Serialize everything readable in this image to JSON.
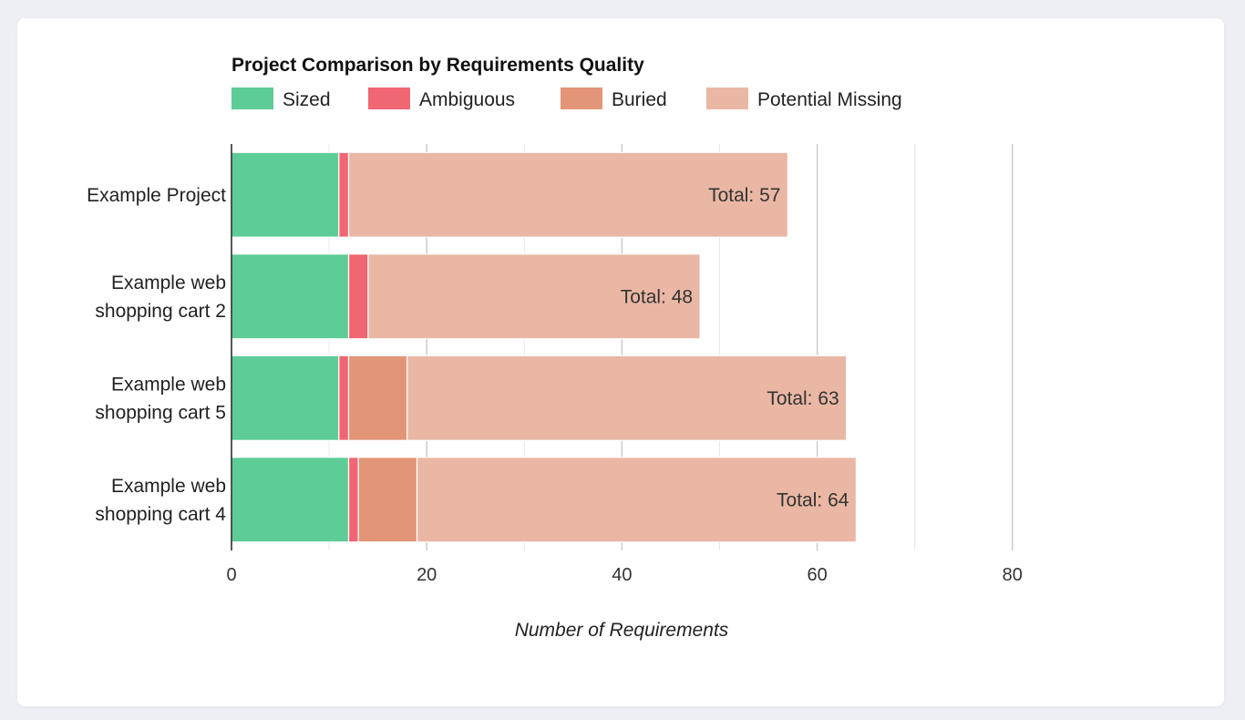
{
  "chart_data": {
    "type": "bar",
    "orientation": "horizontal",
    "stacked": true,
    "title": "Project Comparison by Requirements Quality",
    "xlabel": "Number of Requirements",
    "ylabel": "",
    "xlim": [
      0,
      80
    ],
    "x_ticks": [
      0,
      20,
      40,
      60,
      80
    ],
    "grid": true,
    "legend_position": "top-left",
    "categories": [
      [
        "Example Project"
      ],
      [
        "Example web",
        "shopping cart 2"
      ],
      [
        "Example web",
        "shopping cart 5"
      ],
      [
        "Example web",
        "shopping cart 4"
      ]
    ],
    "series": [
      {
        "name": "Sized",
        "color": "#5ecc96",
        "values": [
          11,
          12,
          11,
          12
        ]
      },
      {
        "name": "Ambiguous",
        "color": "#f06672",
        "values": [
          1,
          2,
          1,
          1
        ]
      },
      {
        "name": "Buried",
        "color": "#e29577",
        "values": [
          0,
          0,
          6,
          6
        ]
      },
      {
        "name": "Potential Missing",
        "color": "#eab7a4",
        "values": [
          45,
          34,
          45,
          45
        ]
      }
    ],
    "totals": [
      57,
      48,
      63,
      64
    ],
    "total_prefix": "Total: "
  }
}
